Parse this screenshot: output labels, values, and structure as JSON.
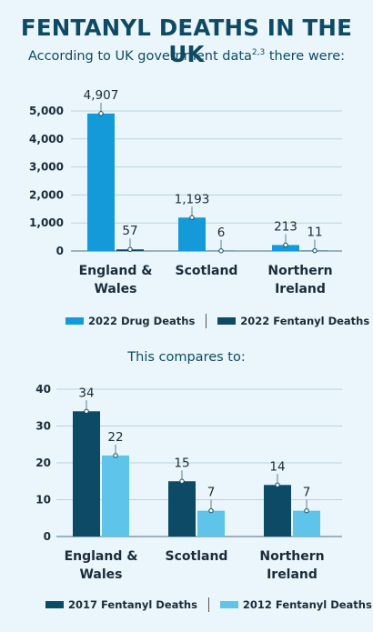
{
  "header": {
    "title": "FENTANYL DEATHS IN THE UK",
    "subtitle_text": "According to UK government data",
    "subtitle_sup": "2,3",
    "subtitle_tail": " there were:",
    "compare_text": "This compares to:"
  },
  "colors": {
    "drug_deaths_2022": "#1499d9",
    "fentanyl_2022": "#0c4a66",
    "fentanyl_2017": "#0c4a66",
    "fentanyl_2012": "#5ec4ea",
    "background": "#eaf6fc",
    "grid": "#b9d3de"
  },
  "chart_data": [
    {
      "type": "bar",
      "categories": [
        "England &\nWales",
        "Scotland",
        "Northern\nIreland"
      ],
      "series": [
        {
          "name": "2022 Drug Deaths",
          "values": [
            4907,
            1193,
            213
          ],
          "labels": [
            "4,907",
            "1,193",
            "213"
          ]
        },
        {
          "name": "2022 Fentanyl Deaths",
          "values": [
            57,
            6,
            11
          ],
          "labels": [
            "57",
            "6",
            "11"
          ]
        }
      ],
      "yticks": [
        0,
        1000,
        2000,
        3000,
        4000,
        5000
      ],
      "ytick_labels": [
        "0",
        "1,000",
        "2,000",
        "3,000",
        "4,000",
        "5,000"
      ],
      "ylim": [
        0,
        5000
      ],
      "grid": true,
      "legend": "bottom"
    },
    {
      "type": "bar",
      "categories": [
        "England &\nWales",
        "Scotland",
        "Northern\nIreland"
      ],
      "series": [
        {
          "name": "2017 Fentanyl Deaths",
          "values": [
            34,
            15,
            14
          ],
          "labels": [
            "34",
            "15",
            "14"
          ]
        },
        {
          "name": "2012 Fentanyl Deaths",
          "values": [
            22,
            7,
            7
          ],
          "labels": [
            "22",
            "7",
            "7"
          ]
        }
      ],
      "yticks": [
        0,
        10,
        20,
        30,
        40
      ],
      "ytick_labels": [
        "0",
        "10",
        "20",
        "30",
        "40"
      ],
      "ylim": [
        0,
        40
      ],
      "grid": true,
      "legend": "bottom"
    }
  ]
}
